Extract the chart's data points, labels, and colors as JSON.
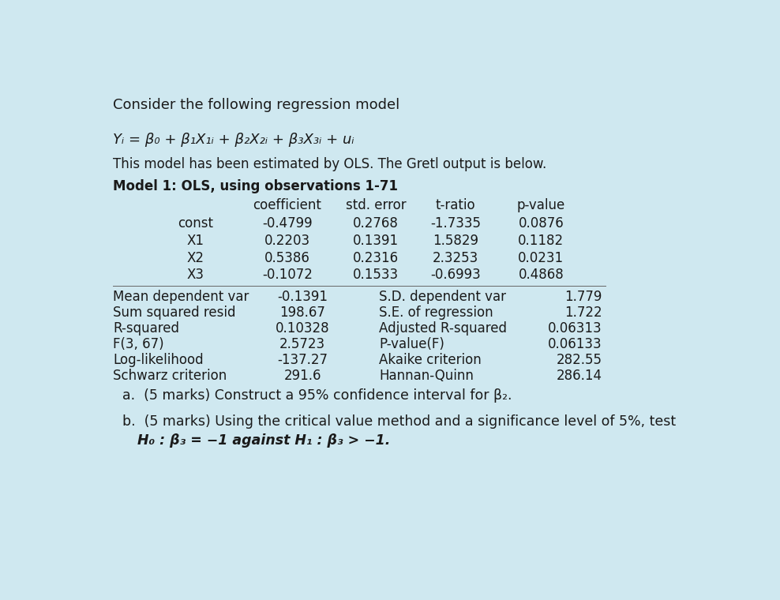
{
  "bg_color": "#cfe8f0",
  "title_text": "Consider the following regression model",
  "equation": "Yᵢ = β₀ + β₁X₁ᵢ + β₂X₂ᵢ + β₃X₃ᵢ + uᵢ",
  "subtitle": "This model has been estimated by OLS. The Gretl output is below.",
  "model_label": "Model 1: OLS, using observations 1-71",
  "table_header": [
    "coefficient",
    "std. error",
    "t-ratio",
    "p-value"
  ],
  "table_rows": [
    [
      "const",
      "-0.4799",
      "0.2768",
      "-1.7335",
      "0.0876"
    ],
    [
      "X1",
      "0.2203",
      "0.1391",
      "1.5829",
      "0.1182"
    ],
    [
      "X2",
      "0.5386",
      "0.2316",
      "2.3253",
      "0.0231"
    ],
    [
      "X3",
      "-0.1072",
      "0.1533",
      "-0.6993",
      "0.4868"
    ]
  ],
  "stats_rows": [
    [
      "Mean dependent var",
      "-0.1391",
      "S.D. dependent var",
      "1.779"
    ],
    [
      "Sum squared resid",
      "198.67",
      "S.E. of regression",
      "1.722"
    ],
    [
      "R-squared",
      "0.10328",
      "Adjusted R-squared",
      "0.06313"
    ],
    [
      "F(3, 67)",
      "2.5723",
      "P-value(F)",
      "0.06133"
    ],
    [
      "Log-likelihood",
      "-137.27",
      "Akaike criterion",
      "282.55"
    ],
    [
      "Schwarz criterion",
      "291.6",
      "Hannan-Quinn",
      "286.14"
    ]
  ],
  "question_a": "a.  (5 marks) Construct a 95% confidence interval for β₂.",
  "question_b1": "b.  (5 marks) Using the critical value method and a significance level of 5%, test",
  "question_b2": "H₀ : β₃ = −1 against H₁ : β₃ > −1."
}
